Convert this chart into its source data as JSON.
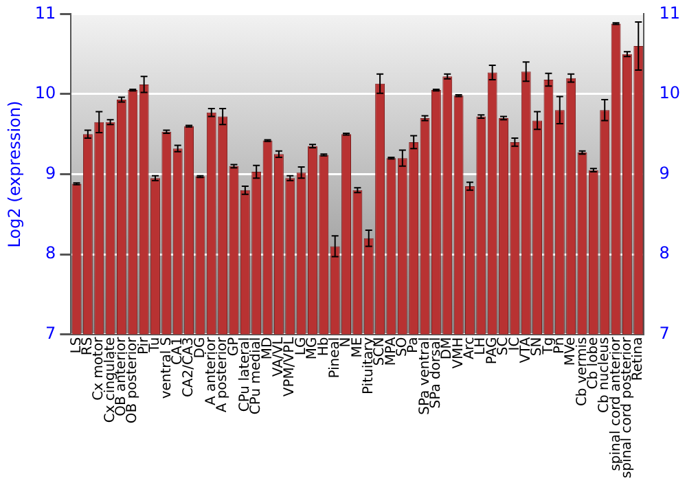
{
  "chart_data": {
    "type": "bar",
    "ylabel": "Log2 (expression)",
    "categories": [
      "LS",
      "RS",
      "Cx motor",
      "Cx cingulate",
      "OB anterior",
      "OB posterior",
      "Pir",
      "Tu",
      "ventral S",
      "CA1",
      "CA2/CA3",
      "DG",
      "A anterior",
      "A posterior",
      "GP",
      "CPu lateral",
      "CPu medial",
      "MD",
      "VA/VL",
      "VPM/VPL",
      "LG",
      "MG",
      "Hb",
      "Pineal",
      "N",
      "ME",
      "Pituitary",
      "SCN",
      "MPA",
      "SO",
      "Pa",
      "SPa ventral",
      "SPa dorsal",
      "DM",
      "VMH",
      "Arc",
      "LH",
      "PAG",
      "SC",
      "IC",
      "VTA",
      "SN",
      "Tg",
      "Pn",
      "MVe",
      "Cb vermis",
      "Cb lobe",
      "Cb nucleus",
      "spinal cord anterior",
      "spinal cord posterior",
      "Retina"
    ],
    "values": [
      8.88,
      9.5,
      9.65,
      9.65,
      9.93,
      10.05,
      10.12,
      8.95,
      9.53,
      9.32,
      9.6,
      8.97,
      9.77,
      9.72,
      9.1,
      8.8,
      9.03,
      9.42,
      9.25,
      8.95,
      9.02,
      9.35,
      9.24,
      8.1,
      9.5,
      8.8,
      8.2,
      10.13,
      9.2,
      9.2,
      9.4,
      9.7,
      10.05,
      10.22,
      9.98,
      8.85,
      9.72,
      10.27,
      9.7,
      9.4,
      10.28,
      9.67,
      10.18,
      9.8,
      10.2,
      9.27,
      9.05,
      9.8,
      10.88,
      10.5,
      10.6
    ],
    "errors": [
      0.01,
      0.05,
      0.13,
      0.03,
      0.03,
      0.01,
      0.1,
      0.03,
      0.02,
      0.04,
      0.01,
      0.01,
      0.05,
      0.1,
      0.02,
      0.05,
      0.08,
      0.01,
      0.04,
      0.03,
      0.07,
      0.02,
      0.01,
      0.13,
      0.01,
      0.03,
      0.1,
      0.12,
      0.01,
      0.1,
      0.08,
      0.03,
      0.01,
      0.03,
      0.01,
      0.05,
      0.02,
      0.09,
      0.02,
      0.05,
      0.12,
      0.11,
      0.08,
      0.17,
      0.05,
      0.02,
      0.02,
      0.13,
      0.01,
      0.03,
      0.3
    ],
    "color": "#b83232",
    "ylim": [
      7,
      11
    ],
    "yticks": [
      7,
      8,
      9,
      10,
      11
    ],
    "y2lim": [
      7,
      11
    ],
    "y2ticks": [
      7,
      8,
      9,
      10,
      11
    ],
    "grid": "y"
  }
}
